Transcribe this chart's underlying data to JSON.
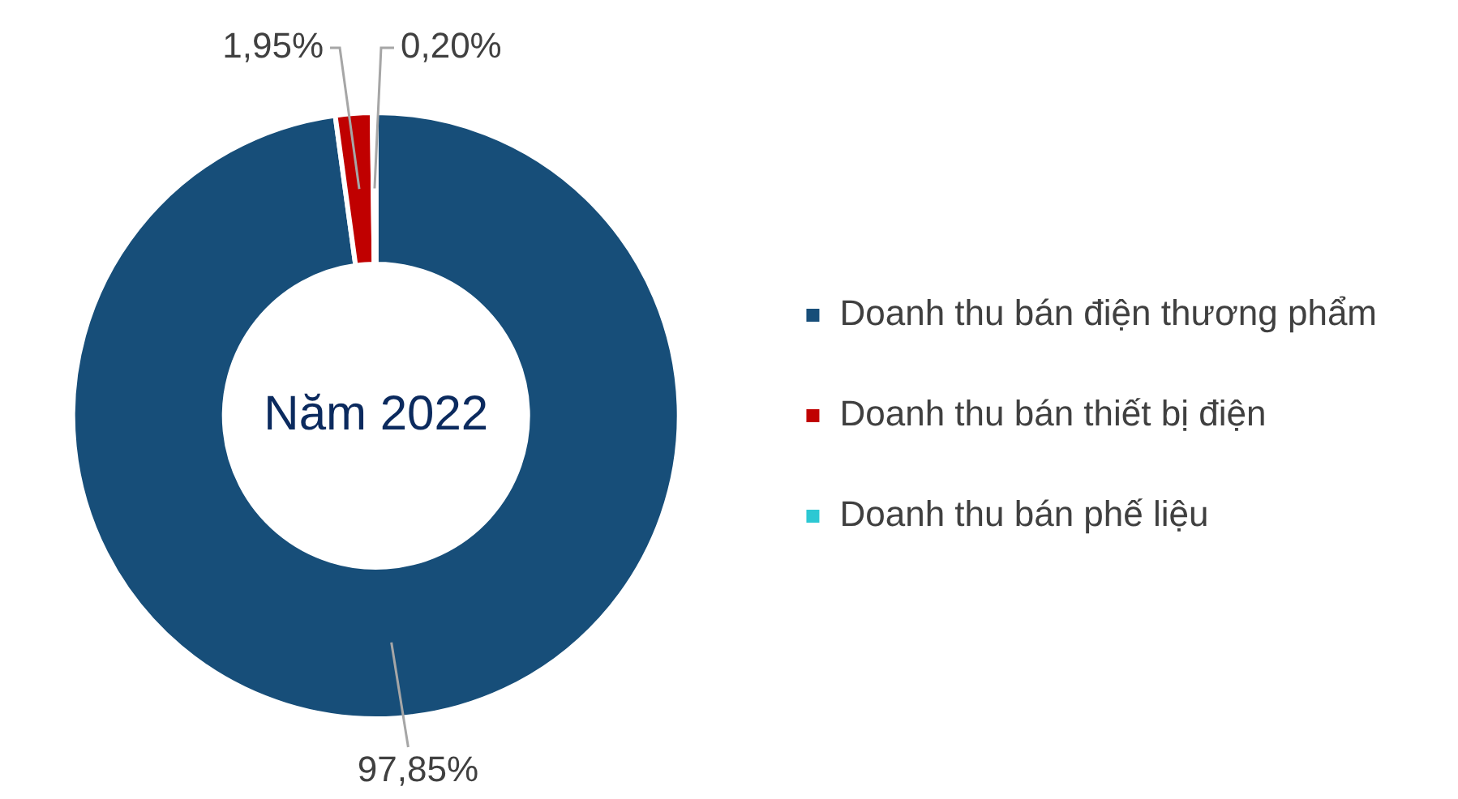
{
  "chart_data": {
    "type": "donut",
    "categories": [
      "Doanh thu bán điện thương phẩm",
      "Doanh thu bán thiết bị điện",
      "Doanh thu bán phế liệu"
    ],
    "values": [
      97.85,
      1.95,
      0.2
    ],
    "value_labels": [
      "97,85%",
      "1,95%",
      "0,20%"
    ],
    "colors": [
      "#174e79",
      "#c00000",
      "#2cc8d3"
    ],
    "annotations": [
      "Năm 2022"
    ],
    "legend": "right"
  }
}
